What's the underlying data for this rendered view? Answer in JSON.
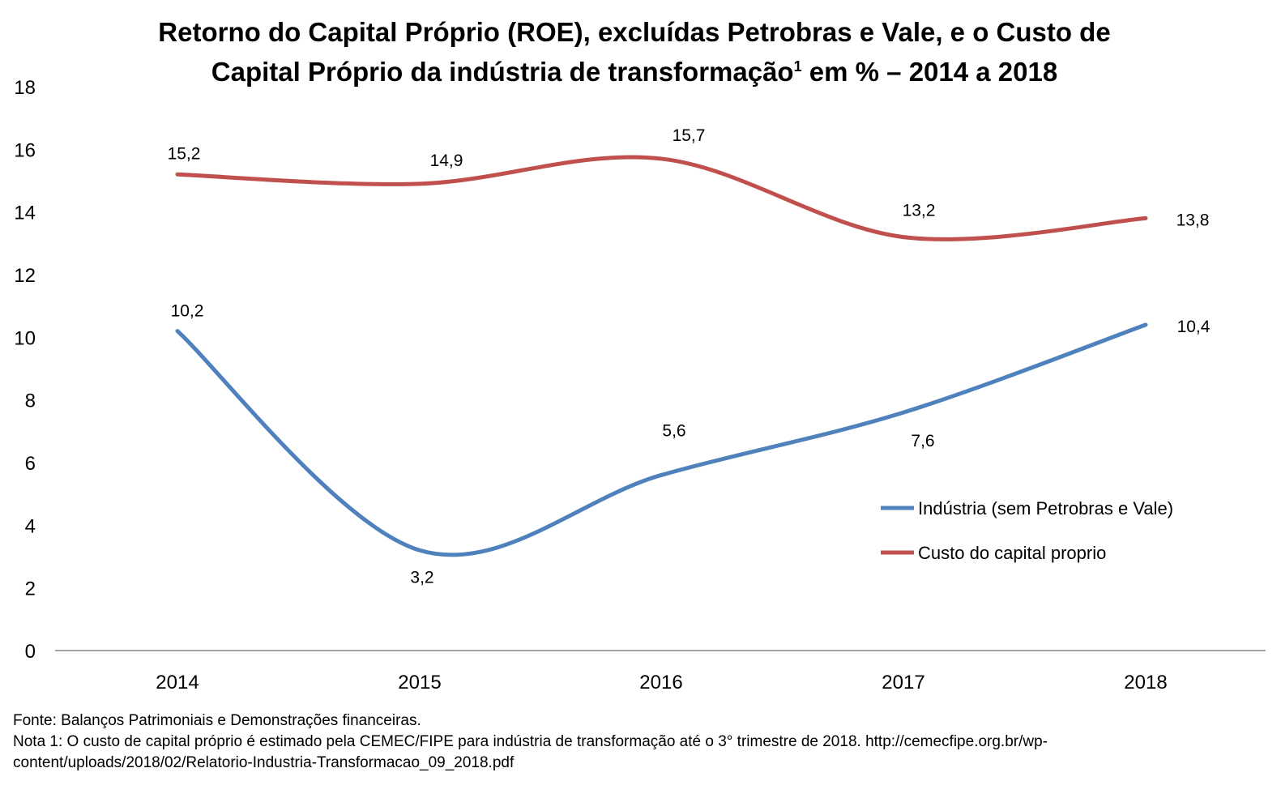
{
  "chart_data": {
    "type": "line",
    "title_line1": "Retorno do Capital Próprio (ROE), excluídas Petrobras e Vale, e o Custo de",
    "title_line2": "Capital Próprio da indústria de transformação",
    "title_sup": "1",
    "title_line2_end": " em % – 2014 a 2018",
    "categories": [
      "2014",
      "2015",
      "2016",
      "2017",
      "2018"
    ],
    "ylim": [
      0,
      18
    ],
    "yticks": [
      0,
      2,
      4,
      6,
      8,
      10,
      12,
      14,
      16,
      18
    ],
    "grid": false,
    "legend_position": "right",
    "series": [
      {
        "name": "Indústria (sem Petrobras e Vale)",
        "color": "#4f81bd",
        "values": [
          10.2,
          3.2,
          5.6,
          7.6,
          10.4
        ],
        "labels": [
          "10,2",
          "3,2",
          "5,6",
          "7,6",
          "10,4"
        ]
      },
      {
        "name": "Custo do capital proprio",
        "color": "#c0504d",
        "values": [
          15.2,
          14.9,
          15.7,
          13.2,
          13.8
        ],
        "labels": [
          "15,2",
          "14,9",
          "15,7",
          "13,2",
          "13,8"
        ]
      }
    ]
  },
  "notes": {
    "fonte": "Fonte: Balanços Patrimoniais e Demonstrações financeiras.",
    "nota1_line1": "Nota 1: O custo de capital próprio é estimado pela CEMEC/FIPE para indústria de transformação até o 3° trimestre de 2018. http://cemecfipe.org.br/wp-",
    "nota1_line2": "content/uploads/2018/02/Relatorio-Industria-Transformacao_09_2018.pdf"
  }
}
